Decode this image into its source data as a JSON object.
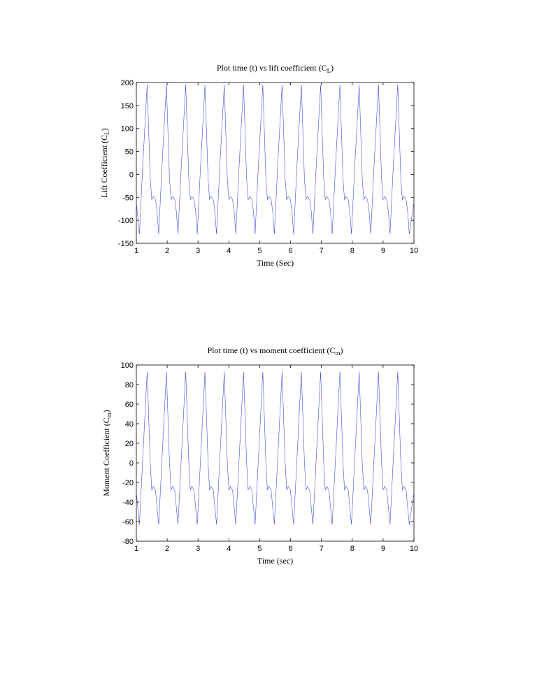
{
  "chart_data": [
    {
      "type": "line",
      "title": [
        "Plot time (t) vs lift coefficient (C",
        "L",
        ")"
      ],
      "x_label": "Time (Sec)",
      "y_label": [
        "Lift Coefficient (C",
        "L",
        ")"
      ],
      "xlim": [
        1,
        10
      ],
      "xticks": [
        1,
        2,
        3,
        4,
        5,
        6,
        7,
        8,
        9,
        10
      ],
      "ylim": [
        -150,
        200
      ],
      "yticks": [
        -150,
        -100,
        -50,
        0,
        50,
        100,
        150,
        200
      ],
      "grid": false,
      "x": [
        1.0,
        1.1,
        1.2,
        1.35,
        1.45,
        1.5,
        1.55,
        1.62,
        1.67,
        1.725,
        1.825,
        1.975,
        2.075,
        2.125,
        2.175,
        2.245,
        2.295,
        2.35,
        2.45,
        2.6,
        2.7,
        2.75,
        2.8,
        2.87,
        2.92,
        2.975,
        3.075,
        3.225,
        3.325,
        3.375,
        3.425,
        3.495,
        3.545,
        3.6,
        3.7,
        3.85,
        3.95,
        4.0,
        4.05,
        4.12,
        4.17,
        4.225,
        4.325,
        4.475,
        4.575,
        4.625,
        4.675,
        4.745,
        4.795,
        4.85,
        4.95,
        5.1,
        5.2,
        5.25,
        5.3,
        5.37,
        5.42,
        5.475,
        5.575,
        5.725,
        5.825,
        5.875,
        5.925,
        5.995,
        6.045,
        6.1,
        6.2,
        6.35,
        6.45,
        6.5,
        6.55,
        6.62,
        6.67,
        6.725,
        6.825,
        6.975,
        7.075,
        7.125,
        7.175,
        7.245,
        7.295,
        7.35,
        7.45,
        7.6,
        7.7,
        7.75,
        7.8,
        7.87,
        7.92,
        7.975,
        8.075,
        8.225,
        8.325,
        8.375,
        8.425,
        8.495,
        8.545,
        8.6,
        8.7,
        8.85,
        8.95,
        9.0,
        9.05,
        9.12,
        9.17,
        9.225,
        9.325,
        9.475,
        9.575,
        9.625,
        9.675,
        9.745,
        9.795,
        9.85,
        10.0
      ],
      "series": [
        {
          "color": "#3f4fd8",
          "values": [
            -60,
            -130,
            10,
            195,
            -10,
            -55,
            -48,
            -55,
            -80,
            -130,
            10,
            195,
            -10,
            -55,
            -48,
            -55,
            -80,
            -130,
            10,
            195,
            -10,
            -55,
            -48,
            -55,
            -80,
            -130,
            10,
            195,
            -10,
            -55,
            -48,
            -55,
            -80,
            -130,
            10,
            195,
            -10,
            -55,
            -48,
            -55,
            -80,
            -130,
            10,
            195,
            -10,
            -55,
            -48,
            -55,
            -80,
            -130,
            10,
            195,
            -10,
            -55,
            -48,
            -55,
            -80,
            -130,
            10,
            195,
            -10,
            -55,
            -48,
            -55,
            -80,
            -130,
            10,
            195,
            -10,
            -55,
            -48,
            -55,
            -80,
            -130,
            10,
            195,
            -10,
            -55,
            -48,
            -55,
            -80,
            -130,
            10,
            195,
            -10,
            -55,
            -48,
            -55,
            -80,
            -130,
            10,
            195,
            -10,
            -55,
            -48,
            -55,
            -80,
            -130,
            10,
            195,
            -10,
            -55,
            -48,
            -55,
            -80,
            -130,
            10,
            195,
            -10,
            -55,
            -48,
            -55,
            -80,
            -130,
            -60
          ]
        }
      ]
    },
    {
      "type": "line",
      "title": [
        "Plot time (t) vs moment coefficient (C",
        "m",
        ")"
      ],
      "x_label": "Time (sec)",
      "y_label": [
        "Moment Coefficient (C",
        "m",
        ")"
      ],
      "xlim": [
        1,
        10
      ],
      "xticks": [
        1,
        2,
        3,
        4,
        5,
        6,
        7,
        8,
        9,
        10
      ],
      "ylim": [
        -80,
        100
      ],
      "yticks": [
        -80,
        -60,
        -40,
        -20,
        0,
        20,
        40,
        60,
        80,
        100
      ],
      "grid": false,
      "x": [
        1.0,
        1.1,
        1.2,
        1.35,
        1.45,
        1.5,
        1.55,
        1.62,
        1.67,
        1.725,
        1.825,
        1.975,
        2.075,
        2.125,
        2.175,
        2.245,
        2.295,
        2.35,
        2.45,
        2.6,
        2.7,
        2.75,
        2.8,
        2.87,
        2.92,
        2.975,
        3.075,
        3.225,
        3.325,
        3.375,
        3.425,
        3.495,
        3.545,
        3.6,
        3.7,
        3.85,
        3.95,
        4.0,
        4.05,
        4.12,
        4.17,
        4.225,
        4.325,
        4.475,
        4.575,
        4.625,
        4.675,
        4.745,
        4.795,
        4.85,
        4.95,
        5.1,
        5.2,
        5.25,
        5.3,
        5.37,
        5.42,
        5.475,
        5.575,
        5.725,
        5.825,
        5.875,
        5.925,
        5.995,
        6.045,
        6.1,
        6.2,
        6.35,
        6.45,
        6.5,
        6.55,
        6.62,
        6.67,
        6.725,
        6.825,
        6.975,
        7.075,
        7.125,
        7.175,
        7.245,
        7.295,
        7.35,
        7.45,
        7.6,
        7.7,
        7.75,
        7.8,
        7.87,
        7.92,
        7.975,
        8.075,
        8.225,
        8.325,
        8.375,
        8.425,
        8.495,
        8.545,
        8.6,
        8.7,
        8.85,
        8.95,
        9.0,
        9.05,
        9.12,
        9.17,
        9.225,
        9.325,
        9.475,
        9.575,
        9.625,
        9.675,
        9.745,
        9.795,
        9.85,
        10.0
      ],
      "series": [
        {
          "color": "#3f4fd8",
          "values": [
            -30,
            -63,
            0,
            93,
            0,
            -28,
            -24,
            -28,
            -45,
            -63,
            0,
            93,
            0,
            -28,
            -24,
            -28,
            -45,
            -63,
            0,
            93,
            0,
            -28,
            -24,
            -28,
            -45,
            -63,
            0,
            93,
            0,
            -28,
            -24,
            -28,
            -45,
            -63,
            0,
            93,
            0,
            -28,
            -24,
            -28,
            -45,
            -63,
            0,
            93,
            0,
            -28,
            -24,
            -28,
            -45,
            -63,
            0,
            93,
            0,
            -28,
            -24,
            -28,
            -45,
            -63,
            0,
            93,
            0,
            -28,
            -24,
            -28,
            -45,
            -63,
            0,
            93,
            0,
            -28,
            -24,
            -28,
            -45,
            -63,
            0,
            93,
            0,
            -28,
            -24,
            -28,
            -45,
            -63,
            0,
            93,
            0,
            -28,
            -24,
            -28,
            -45,
            -63,
            0,
            93,
            0,
            -28,
            -24,
            -28,
            -45,
            -63,
            0,
            93,
            0,
            -28,
            -24,
            -28,
            -45,
            -63,
            0,
            93,
            0,
            -28,
            -24,
            -28,
            -45,
            -63,
            -30
          ]
        }
      ]
    }
  ]
}
